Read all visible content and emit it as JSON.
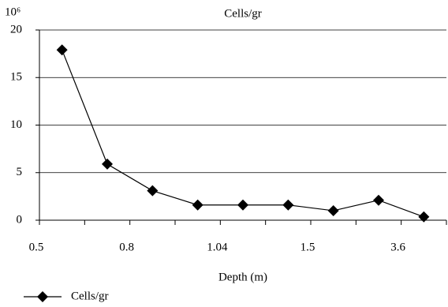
{
  "chart_data": {
    "type": "line",
    "title": "Cells/gr",
    "y_unit_label": "10⁶",
    "x_label": "Depth (m)",
    "categories": [
      "0.5",
      null,
      "0.8",
      null,
      "1.04",
      null,
      "1.5",
      null,
      "3.6"
    ],
    "series": [
      {
        "name": "Cells/gr",
        "color": "#000000",
        "values": [
          17.9,
          5.9,
          3.1,
          1.6,
          1.6,
          1.6,
          1.0,
          2.1,
          0.35
        ]
      }
    ],
    "ylim": [
      0,
      20
    ],
    "yticks": [
      0,
      5,
      10,
      15,
      20
    ],
    "grid": true,
    "legend": "bottom-left"
  }
}
